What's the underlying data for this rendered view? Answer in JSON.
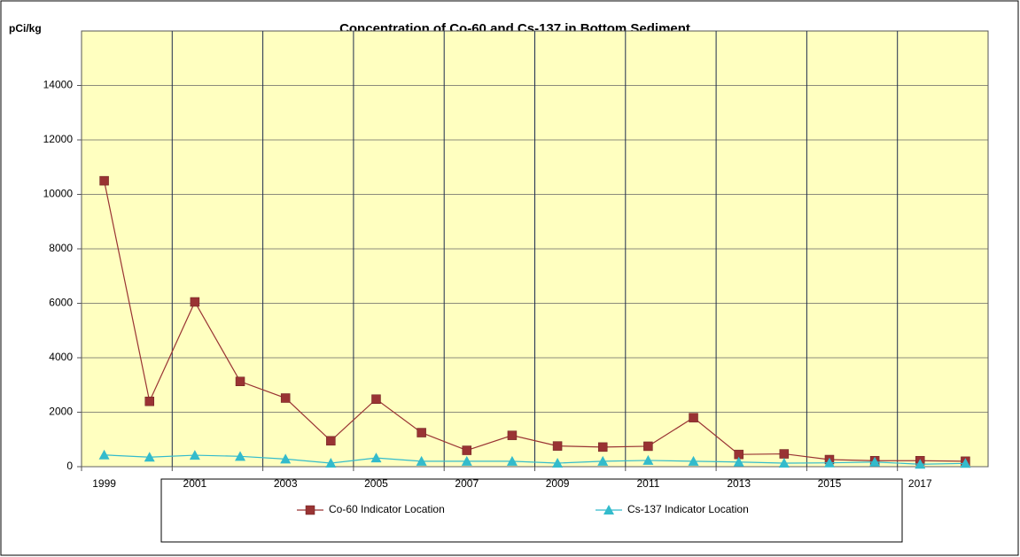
{
  "chart_data": {
    "type": "line",
    "title": "Concentration of Co-60 and Cs-137 in Bottom Sediment",
    "y_label": "pCi/kg",
    "categories": [
      1999,
      null,
      2001,
      null,
      2003,
      null,
      2005,
      null,
      2007,
      null,
      2009,
      null,
      2011,
      null,
      2013,
      null,
      2015,
      null,
      2017,
      null
    ],
    "series": [
      {
        "name": "Co-60 Indicator Location",
        "color": "#993333",
        "marker": "square",
        "values": [
          10500,
          2400,
          6050,
          3130,
          2520,
          950,
          2480,
          1250,
          600,
          1150,
          760,
          720,
          750,
          1800,
          450,
          470,
          260,
          220,
          220,
          200
        ]
      },
      {
        "name": "Cs-137 Indicator Location",
        "color": "#33bbcc",
        "marker": "triangle",
        "values": [
          430,
          350,
          420,
          380,
          280,
          130,
          320,
          200,
          200,
          200,
          130,
          200,
          230,
          200,
          170,
          130,
          140,
          170,
          90,
          120
        ]
      }
    ],
    "ylim": [
      0,
      16000
    ],
    "yticks": [
      0,
      2000,
      4000,
      6000,
      8000,
      10000,
      12000,
      14000
    ],
    "grid": true,
    "legend": "bottom",
    "plot_background": "#ffffc0"
  }
}
